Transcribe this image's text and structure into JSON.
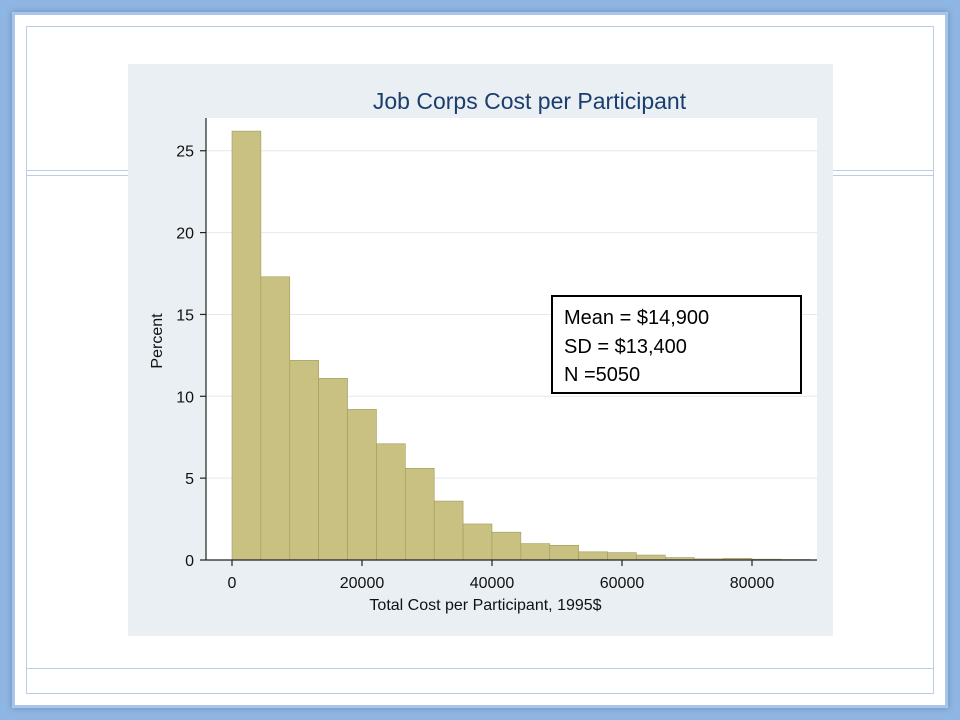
{
  "chart_data": {
    "type": "bar",
    "title": "Job Corps Cost per Participant",
    "xlabel": "Total Cost per Participant, 1995$",
    "ylabel": "Percent",
    "bin_width": 4444,
    "bin_start": 0,
    "values": [
      26.2,
      17.3,
      12.2,
      11.1,
      9.2,
      7.1,
      5.6,
      3.6,
      2.2,
      1.7,
      1.0,
      0.9,
      0.5,
      0.45,
      0.3,
      0.15,
      0.07,
      0.1,
      0.05,
      0.03
    ],
    "xlim": [
      -4000,
      90000
    ],
    "ylim": [
      0,
      27
    ],
    "xticks": [
      0,
      20000,
      40000,
      60000,
      80000
    ],
    "xtick_labels": [
      "0",
      "20000",
      "40000",
      "60000",
      "80000"
    ],
    "yticks": [
      0,
      5,
      10,
      15,
      20,
      25
    ],
    "ytick_labels": [
      "0",
      "5",
      "10",
      "15",
      "20",
      "25"
    ],
    "grid": true,
    "colors": {
      "bar_fill": "#c9c182",
      "bar_stroke": "#a09a5e",
      "plot_bg": "#ffffff",
      "figure_bg": "#e9eff3",
      "grid": "#e3e9ee",
      "axis": "#222222"
    }
  },
  "annotation": {
    "lines": [
      "Mean = $14,900",
      "SD = $13,400",
      "N =5050"
    ]
  }
}
